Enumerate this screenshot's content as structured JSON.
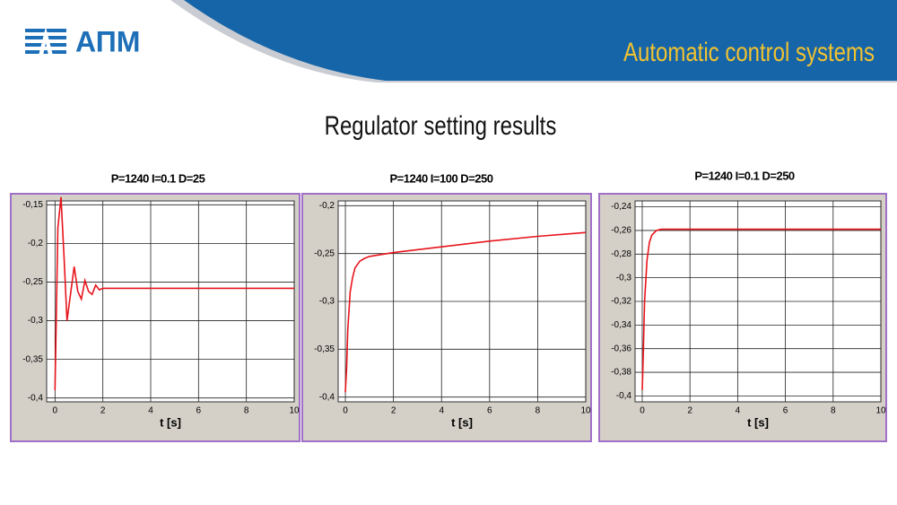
{
  "header": {
    "logo": "АПМ",
    "title": "Automatic control systems"
  },
  "slide_title": "Regulator setting results",
  "chart_data": [
    {
      "type": "line",
      "title": "P=1240 I=0.1 D=25",
      "xlabel": "t [s]",
      "color": "#e8141c",
      "grid": true,
      "x": [
        0,
        0.05,
        0.12,
        0.25,
        0.38,
        0.5,
        0.65,
        0.8,
        0.95,
        1.1,
        1.25,
        1.4,
        1.55,
        1.7,
        1.85,
        2,
        3,
        4,
        5,
        6,
        7,
        8,
        9,
        10
      ],
      "values": [
        -0.39,
        -0.3,
        -0.18,
        -0.14,
        -0.22,
        -0.3,
        -0.265,
        -0.23,
        -0.262,
        -0.272,
        -0.248,
        -0.262,
        -0.266,
        -0.254,
        -0.26,
        -0.258,
        -0.258,
        -0.258,
        -0.258,
        -0.258,
        -0.258,
        -0.258,
        -0.258,
        -0.258
      ],
      "xlim": [
        -0.35,
        10
      ],
      "ylim": [
        -0.405,
        -0.145
      ],
      "xticks": [
        0,
        2,
        4,
        6,
        8,
        10
      ],
      "yticks": [
        {
          "value": -0.15,
          "label": "-0,15"
        },
        {
          "value": -0.2,
          "label": "-0,2"
        },
        {
          "value": -0.25,
          "label": "-0,25"
        },
        {
          "value": -0.3,
          "label": "-0,3"
        },
        {
          "value": -0.35,
          "label": "-0,35"
        },
        {
          "value": -0.4,
          "label": "-0,4"
        }
      ]
    },
    {
      "type": "line",
      "title": "P=1240 I=100 D=250",
      "xlabel": "t [s]",
      "color": "#e8141c",
      "grid": true,
      "x": [
        0,
        0.05,
        0.1,
        0.2,
        0.3,
        0.4,
        0.6,
        0.8,
        1,
        2,
        4,
        6,
        8,
        10
      ],
      "values": [
        -0.395,
        -0.37,
        -0.33,
        -0.29,
        -0.275,
        -0.265,
        -0.258,
        -0.255,
        -0.253,
        -0.249,
        -0.243,
        -0.237,
        -0.232,
        -0.228
      ],
      "xlim": [
        -0.3,
        10
      ],
      "ylim": [
        -0.405,
        -0.195
      ],
      "xticks": [
        0,
        2,
        4,
        6,
        8,
        10
      ],
      "yticks": [
        {
          "value": -0.2,
          "label": "-0,2"
        },
        {
          "value": -0.25,
          "label": "-0,25"
        },
        {
          "value": -0.3,
          "label": "-0,3"
        },
        {
          "value": -0.35,
          "label": "-0,35"
        },
        {
          "value": -0.4,
          "label": "-0,4"
        }
      ]
    },
    {
      "type": "line",
      "title": "P=1240 I=0.1 D=250",
      "xlabel": "t [s]",
      "color": "#e8141c",
      "grid": true,
      "x": [
        0,
        0.05,
        0.1,
        0.2,
        0.3,
        0.4,
        0.6,
        0.8,
        1,
        2,
        4,
        6,
        8,
        10
      ],
      "values": [
        -0.395,
        -0.36,
        -0.32,
        -0.285,
        -0.27,
        -0.264,
        -0.26,
        -0.259,
        -0.259,
        -0.259,
        -0.259,
        -0.259,
        -0.259,
        -0.259
      ],
      "xlim": [
        -0.3,
        10
      ],
      "ylim": [
        -0.405,
        -0.235
      ],
      "xticks": [
        0,
        2,
        4,
        6,
        8,
        10
      ],
      "yticks": [
        {
          "value": -0.24,
          "label": "-0,24"
        },
        {
          "value": -0.26,
          "label": "-0,26"
        },
        {
          "value": -0.28,
          "label": "-0,28"
        },
        {
          "value": -0.3,
          "label": "-0,3"
        },
        {
          "value": -0.32,
          "label": "-0,32"
        },
        {
          "value": -0.34,
          "label": "-0,34"
        },
        {
          "value": -0.36,
          "label": "-0,36"
        },
        {
          "value": -0.38,
          "label": "-0,38"
        },
        {
          "value": -0.4,
          "label": "-0,4"
        }
      ]
    }
  ]
}
